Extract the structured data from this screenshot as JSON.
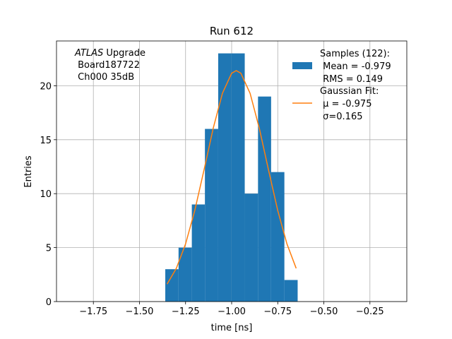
{
  "chart_data": {
    "type": "histogram",
    "title": "Run 612",
    "x_label": "time [ns]",
    "y_label": "Entries",
    "annotation": [
      "ATLAS",
      " Upgrade",
      " Board187722",
      " Ch000 35dB"
    ],
    "bins": [
      -1.36,
      -1.288,
      -1.216,
      -1.145,
      -1.073,
      -1.001,
      -0.929,
      -0.857,
      -0.786,
      -0.714,
      -0.642
    ],
    "series": [
      {
        "type": "histogram",
        "name": [
          "Samples (122):",
          " Mean = -0.979",
          " RMS = 0.149"
        ],
        "color": "#1f77b4",
        "values": [
          3,
          5,
          9,
          16,
          23,
          23,
          10,
          19,
          12,
          2
        ]
      },
      {
        "type": "line",
        "name": [
          "Gaussian Fit:",
          " μ = -0.975",
          " σ=0.165"
        ],
        "color": "#ff7f0e",
        "x": [
          -1.35,
          -1.3,
          -1.25,
          -1.2,
          -1.15,
          -1.1,
          -1.05,
          -1.0,
          -0.975,
          -0.95,
          -0.9,
          -0.85,
          -0.8,
          -0.75,
          -0.7,
          -0.65
        ],
        "values": [
          1.62,
          3.08,
          5.34,
          8.44,
          12.19,
          16.06,
          19.3,
          21.16,
          21.4,
          21.16,
          19.3,
          16.06,
          12.19,
          8.44,
          5.34,
          3.08
        ]
      }
    ],
    "xlim": [
      -1.95,
      -0.05
    ],
    "ylim": [
      0,
      24.15
    ],
    "xticks": [
      {
        "value": -1.75,
        "label": "−1.75"
      },
      {
        "value": -1.5,
        "label": "−1.50"
      },
      {
        "value": -1.25,
        "label": "−1.25"
      },
      {
        "value": -1.0,
        "label": "−1.00"
      },
      {
        "value": -0.75,
        "label": "−0.75"
      },
      {
        "value": -0.5,
        "label": "−0.50"
      },
      {
        "value": -0.25,
        "label": "−0.25"
      }
    ],
    "yticks": [
      0,
      5,
      10,
      15,
      20
    ],
    "grid": true
  }
}
